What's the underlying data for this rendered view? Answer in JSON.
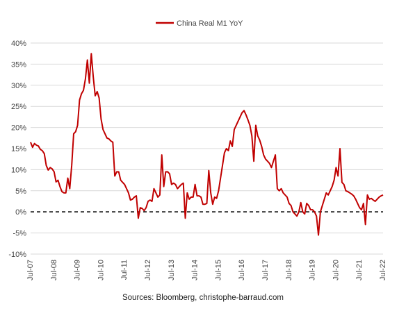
{
  "chart_data": {
    "type": "line",
    "title": "",
    "xlabel": "",
    "ylabel": "",
    "ylim": [
      -10,
      40
    ],
    "yticks": [
      -10,
      -5,
      0,
      5,
      10,
      15,
      20,
      25,
      30,
      35,
      40
    ],
    "ytick_labels": [
      "-10%",
      "-5%",
      "0%",
      "5%",
      "10%",
      "15%",
      "20%",
      "25%",
      "30%",
      "35%",
      "40%"
    ],
    "xlim": [
      "2007-07",
      "2022-07"
    ],
    "xticks": [
      "2007-07",
      "2008-07",
      "2009-07",
      "2010-07",
      "2011-07",
      "2012-07",
      "2013-07",
      "2014-07",
      "2015-07",
      "2016-07",
      "2017-07",
      "2018-07",
      "2019-07",
      "2020-07",
      "2021-07",
      "2022-07"
    ],
    "xtick_labels": [
      "Jul-07",
      "Jul-08",
      "Jul-09",
      "Jul-10",
      "Jul-11",
      "Jul-12",
      "Jul-13",
      "Jul-14",
      "Jul-15",
      "Jul-16",
      "Jul-17",
      "Jul-18",
      "Jul-19",
      "Jul-20",
      "Jul-21",
      "Jul-22"
    ],
    "grid": "horizontal",
    "legend": "top-center",
    "zero_line": "dashed black",
    "series": [
      {
        "name": "China Real M1 YoY",
        "color": "#C00000",
        "x": [
          "2007-07",
          "2007-08",
          "2007-09",
          "2007-10",
          "2007-11",
          "2007-12",
          "2008-01",
          "2008-02",
          "2008-03",
          "2008-04",
          "2008-05",
          "2008-06",
          "2008-07",
          "2008-08",
          "2008-09",
          "2008-10",
          "2008-11",
          "2008-12",
          "2009-01",
          "2009-02",
          "2009-03",
          "2009-04",
          "2009-05",
          "2009-06",
          "2009-07",
          "2009-08",
          "2009-09",
          "2009-10",
          "2009-11",
          "2009-12",
          "2010-01",
          "2010-02",
          "2010-03",
          "2010-04",
          "2010-05",
          "2010-06",
          "2010-07",
          "2010-08",
          "2010-09",
          "2010-10",
          "2010-11",
          "2010-12",
          "2011-01",
          "2011-02",
          "2011-03",
          "2011-04",
          "2011-05",
          "2011-06",
          "2011-07",
          "2011-08",
          "2011-09",
          "2011-10",
          "2011-11",
          "2011-12",
          "2012-01",
          "2012-02",
          "2012-03",
          "2012-04",
          "2012-05",
          "2012-06",
          "2012-07",
          "2012-08",
          "2012-09",
          "2012-10",
          "2012-11",
          "2012-12",
          "2013-01",
          "2013-02",
          "2013-03",
          "2013-04",
          "2013-05",
          "2013-06",
          "2013-07",
          "2013-08",
          "2013-09",
          "2013-10",
          "2013-11",
          "2013-12",
          "2014-01",
          "2014-02",
          "2014-03",
          "2014-04",
          "2014-05",
          "2014-06",
          "2014-07",
          "2014-08",
          "2014-09",
          "2014-10",
          "2014-11",
          "2014-12",
          "2015-01",
          "2015-02",
          "2015-03",
          "2015-04",
          "2015-05",
          "2015-06",
          "2015-07",
          "2015-08",
          "2015-09",
          "2015-10",
          "2015-11",
          "2015-12",
          "2016-01",
          "2016-02",
          "2016-03",
          "2016-04",
          "2016-05",
          "2016-06",
          "2016-07",
          "2016-08",
          "2016-09",
          "2016-10",
          "2016-11",
          "2016-12",
          "2017-01",
          "2017-02",
          "2017-03",
          "2017-04",
          "2017-05",
          "2017-06",
          "2017-07",
          "2017-08",
          "2017-09",
          "2017-10",
          "2017-11",
          "2017-12",
          "2018-01",
          "2018-02",
          "2018-03",
          "2018-04",
          "2018-05",
          "2018-06",
          "2018-07",
          "2018-08",
          "2018-09",
          "2018-10",
          "2018-11",
          "2018-12",
          "2019-01",
          "2019-02",
          "2019-03",
          "2019-04",
          "2019-05",
          "2019-06",
          "2019-07",
          "2019-08",
          "2019-09",
          "2019-10",
          "2019-11",
          "2019-12",
          "2020-01",
          "2020-02",
          "2020-03",
          "2020-04",
          "2020-05",
          "2020-06",
          "2020-07",
          "2020-08",
          "2020-09",
          "2020-10",
          "2020-11",
          "2020-12",
          "2021-01",
          "2021-02",
          "2021-03",
          "2021-04",
          "2021-05",
          "2021-06",
          "2021-07",
          "2021-08",
          "2021-09",
          "2021-10",
          "2021-11",
          "2021-12",
          "2022-01",
          "2022-02",
          "2022-03",
          "2022-04",
          "2022-05",
          "2022-06",
          "2022-07"
        ],
        "values": [
          16.5,
          15.3,
          16.2,
          15.8,
          15.6,
          14.8,
          14.5,
          13.8,
          11.0,
          9.9,
          10.5,
          10.2,
          9.5,
          7.1,
          7.5,
          6.0,
          4.8,
          4.5,
          4.5,
          8.0,
          5.5,
          11.0,
          18.5,
          19.0,
          20.5,
          26.5,
          28.0,
          28.8,
          31.5,
          36.0,
          30.5,
          37.5,
          32.0,
          27.5,
          28.5,
          27.0,
          22.0,
          19.5,
          18.5,
          17.5,
          17.3,
          16.8,
          16.5,
          8.5,
          9.5,
          9.5,
          7.5,
          7.0,
          6.5,
          5.5,
          4.5,
          2.8,
          3.0,
          3.5,
          3.8,
          -1.5,
          1.0,
          0.8,
          0.3,
          1.0,
          2.5,
          2.8,
          2.5,
          5.5,
          4.5,
          3.5,
          4.0,
          13.5,
          6.0,
          9.5,
          9.5,
          9.0,
          6.5,
          6.8,
          6.5,
          5.5,
          6.0,
          6.5,
          6.8,
          -1.5,
          4.5,
          3.0,
          3.5,
          3.5,
          6.5,
          3.8,
          3.8,
          3.5,
          1.8,
          1.8,
          2.0,
          9.8,
          4.5,
          1.8,
          3.5,
          3.2,
          5.0,
          8.0,
          11.0,
          14.0,
          15.0,
          14.5,
          16.8,
          15.5,
          19.5,
          20.5,
          21.5,
          22.5,
          23.5,
          24.0,
          23.0,
          21.8,
          20.5,
          18.0,
          12.0,
          20.5,
          18.0,
          17.0,
          15.5,
          13.5,
          12.5,
          12.0,
          11.5,
          10.5,
          12.0,
          13.5,
          5.5,
          5.0,
          5.5,
          4.5,
          4.0,
          3.5,
          2.0,
          1.5,
          0.0,
          -0.5,
          -1.0,
          0.0,
          2.2,
          0.0,
          -0.5,
          2.0,
          1.5,
          0.5,
          0.5,
          0.0,
          -1.0,
          -5.5,
          0.0,
          1.5,
          3.0,
          4.5,
          4.0,
          5.0,
          6.0,
          7.5,
          10.5,
          8.5,
          15.0,
          7.0,
          6.5,
          5.0,
          4.8,
          4.5,
          4.2,
          3.8,
          3.0,
          2.0,
          1.0,
          0.5,
          2.0,
          -3.0,
          4.0,
          3.0,
          3.2,
          2.8,
          2.5,
          3.0,
          3.5,
          3.8,
          4.0
        ]
      }
    ],
    "legend_entries": [
      "China Real M1 YoY"
    ],
    "source_note": "Sources: Bloomberg, christophe-barraud.com"
  }
}
